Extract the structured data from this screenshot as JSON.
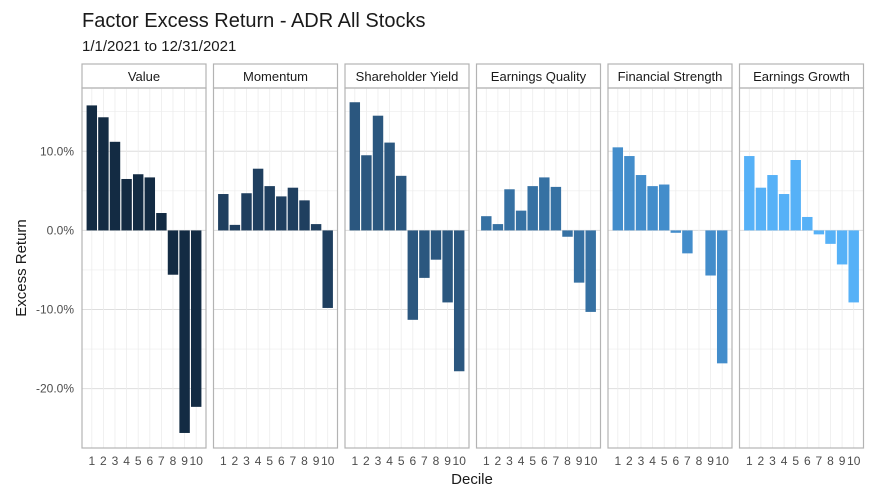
{
  "chart_data": {
    "type": "bar",
    "title": "Factor Excess Return - ADR All Stocks",
    "subtitle": "1/1/2021 to 12/31/2021",
    "xlabel": "Decile",
    "ylabel": "Excess Return",
    "ylim": [
      -27.5,
      18
    ],
    "yticks": [
      -20,
      -10,
      0,
      10
    ],
    "ytick_labels": [
      "-20.0%",
      "-10.0%",
      "0.0%",
      "10.0%"
    ],
    "categories": [
      "1",
      "2",
      "3",
      "4",
      "5",
      "6",
      "7",
      "8",
      "9",
      "10"
    ],
    "panels": [
      {
        "name": "Value",
        "color": "#132b43",
        "values": [
          15.8,
          14.3,
          11.2,
          6.5,
          7.1,
          6.7,
          2.2,
          -5.6,
          -25.6,
          -22.3
        ]
      },
      {
        "name": "Momentum",
        "color": "#1f3f5f",
        "values": [
          4.6,
          0.7,
          4.7,
          7.8,
          5.6,
          4.3,
          5.4,
          3.8,
          0.8,
          -9.8
        ]
      },
      {
        "name": "Shareholder Yield",
        "color": "#2b577f",
        "values": [
          16.2,
          9.5,
          14.5,
          11.1,
          6.9,
          -11.3,
          -6.0,
          -3.7,
          -9.1,
          -17.8
        ]
      },
      {
        "name": "Earnings Quality",
        "color": "#3671a3",
        "values": [
          1.8,
          0.8,
          5.2,
          2.5,
          5.6,
          6.7,
          5.5,
          -0.8,
          -6.6,
          -10.3
        ]
      },
      {
        "name": "Financial Strength",
        "color": "#438dcb",
        "values": [
          10.5,
          9.4,
          7.0,
          5.6,
          5.8,
          -0.3,
          -2.9,
          0.0,
          -5.7,
          -16.8
        ]
      },
      {
        "name": "Earnings Growth",
        "color": "#56b1f7",
        "values": [
          9.4,
          5.4,
          7.0,
          4.6,
          8.9,
          1.7,
          -0.5,
          -1.7,
          -4.3,
          -9.1
        ]
      }
    ]
  }
}
